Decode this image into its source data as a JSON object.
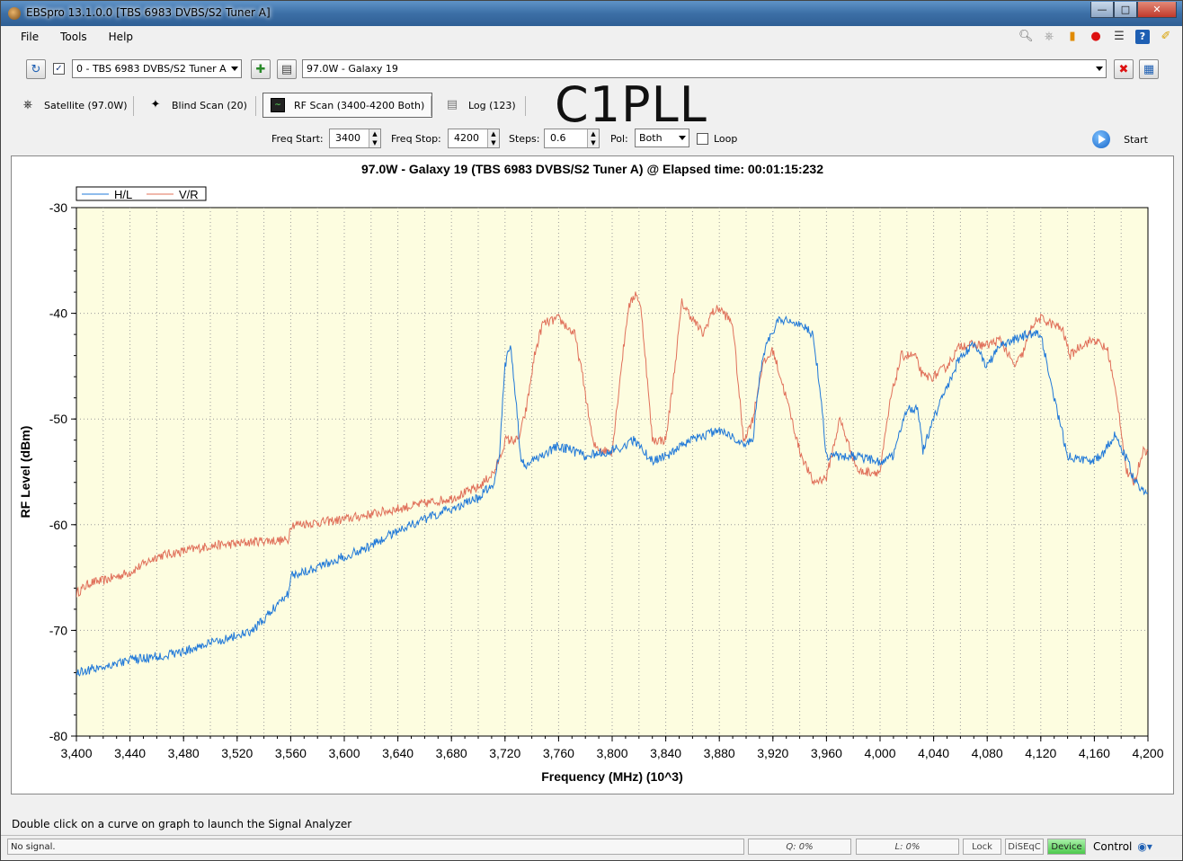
{
  "window": {
    "title": "EBSpro 13.1.0.0 [TBS 6983 DVBS/S2 Tuner A]"
  },
  "menu": {
    "file": "File",
    "tools": "Tools",
    "help": "Help"
  },
  "toolbar": {
    "tuner_select": "0 - TBS 6983 DVBS/S2 Tuner A",
    "satellite_select": "97.0W - Galaxy 19"
  },
  "tabs": {
    "satellite": "Satellite (97.0W)",
    "blind_scan": "Blind Scan (20)",
    "rf_scan": "RF Scan (3400-4200 Both)",
    "log": "Log (123)"
  },
  "watermark": "C1PLL",
  "params": {
    "freq_start_label": "Freq Start:",
    "freq_start": "3400",
    "freq_stop_label": "Freq Stop:",
    "freq_stop": "4200",
    "steps_label": "Steps:",
    "steps": "0.6",
    "pol_label": "Pol:",
    "pol": "Both",
    "loop_label": "Loop",
    "start_label": "Start"
  },
  "chart_data": {
    "type": "line",
    "title": "97.0W - Galaxy 19 (TBS 6983 DVBS/S2 Tuner A) @ Elapsed time: 00:01:15:232",
    "xlabel": "Frequency (MHz) (10^3)",
    "ylabel": "RF Level (dBm)",
    "xlim": [
      3400,
      4200
    ],
    "ylim": [
      -80,
      -30
    ],
    "xticks": [
      3400,
      3440,
      3480,
      3520,
      3560,
      3600,
      3640,
      3680,
      3720,
      3760,
      3800,
      3840,
      3880,
      3920,
      3960,
      4000,
      4040,
      4080,
      4120,
      4160,
      4200
    ],
    "xtick_labels": [
      "3,400",
      "3,440",
      "3,480",
      "3,520",
      "3,560",
      "3,600",
      "3,640",
      "3,680",
      "3,720",
      "3,760",
      "3,800",
      "3,840",
      "3,880",
      "3,920",
      "3,960",
      "4,000",
      "4,040",
      "4,080",
      "4,120",
      "4,160",
      "4,200"
    ],
    "yticks": [
      -30,
      -40,
      -50,
      -60,
      -70,
      -80
    ],
    "grid": true,
    "legend": "top-left",
    "colors": {
      "plot_bg": "#fdfde0",
      "H/L": "#1f78d8",
      "V/R": "#e0705a"
    },
    "series": [
      {
        "name": "H/L",
        "x": [
          3400,
          3420,
          3440,
          3460,
          3480,
          3500,
          3520,
          3530,
          3540,
          3550,
          3555,
          3558,
          3560,
          3580,
          3600,
          3620,
          3640,
          3660,
          3680,
          3700,
          3712,
          3716,
          3720,
          3724,
          3728,
          3732,
          3736,
          3740,
          3760,
          3780,
          3800,
          3810,
          3816,
          3820,
          3830,
          3840,
          3860,
          3880,
          3900,
          3905,
          3910,
          3915,
          3925,
          3940,
          3950,
          3955,
          3960,
          3980,
          4000,
          4010,
          4020,
          4028,
          4032,
          4040,
          4050,
          4060,
          4070,
          4080,
          4090,
          4100,
          4110,
          4120,
          4130,
          4140,
          4160,
          4168,
          4175,
          4185,
          4190,
          4200
        ],
        "y": [
          -74,
          -73.4,
          -72.8,
          -72.5,
          -72,
          -71.2,
          -70.5,
          -70.2,
          -69,
          -67.5,
          -66.8,
          -66.5,
          -64.8,
          -64,
          -63,
          -62,
          -60.5,
          -59.5,
          -58.5,
          -57.5,
          -56,
          -53,
          -45,
          -42.8,
          -48,
          -54,
          -54.5,
          -54,
          -52.5,
          -53.5,
          -53,
          -52.5,
          -52,
          -52.5,
          -54,
          -53.5,
          -52,
          -51,
          -52.5,
          -52,
          -46,
          -43,
          -40.5,
          -41,
          -42,
          -47,
          -53.5,
          -53.5,
          -54,
          -53.5,
          -49,
          -49,
          -53,
          -50,
          -47,
          -44,
          -43,
          -45,
          -43,
          -42.5,
          -42,
          -42,
          -48,
          -53.5,
          -54,
          -53,
          -51.5,
          -54,
          -56,
          -57
        ]
      },
      {
        "name": "V/R",
        "x": [
          3400,
          3410,
          3420,
          3440,
          3460,
          3480,
          3500,
          3520,
          3540,
          3558,
          3560,
          3580,
          3600,
          3620,
          3640,
          3660,
          3680,
          3700,
          3712,
          3718,
          3720,
          3730,
          3736,
          3742,
          3748,
          3760,
          3772,
          3778,
          3786,
          3794,
          3800,
          3806,
          3812,
          3818,
          3822,
          3830,
          3840,
          3846,
          3852,
          3860,
          3868,
          3874,
          3880,
          3890,
          3898,
          3905,
          3912,
          3920,
          3930,
          3940,
          3950,
          3960,
          3970,
          3978,
          3984,
          3990,
          4000,
          4008,
          4016,
          4026,
          4032,
          4040,
          4050,
          4060,
          4070,
          4080,
          4090,
          4100,
          4106,
          4114,
          4120,
          4128,
          4136,
          4142,
          4150,
          4160,
          4170,
          4178,
          4184,
          4190,
          4196,
          4200
        ],
        "y": [
          -66.5,
          -65.5,
          -65.3,
          -64.5,
          -63,
          -62.5,
          -62,
          -61.8,
          -61.5,
          -61.5,
          -60,
          -59.8,
          -59.5,
          -59,
          -58.5,
          -58,
          -57.5,
          -56.5,
          -55,
          -53,
          -52,
          -52,
          -49,
          -44,
          -41,
          -40.5,
          -42,
          -46,
          -52.5,
          -53,
          -53,
          -46,
          -39.5,
          -38,
          -40,
          -52,
          -52,
          -46,
          -39,
          -40.5,
          -42,
          -40,
          -39.5,
          -41,
          -52,
          -50,
          -45,
          -43.5,
          -48,
          -53,
          -56,
          -55.5,
          -50,
          -53,
          -55,
          -55,
          -55,
          -48,
          -44,
          -44,
          -46,
          -46,
          -45,
          -43,
          -43,
          -43,
          -42.5,
          -45,
          -44,
          -41,
          -40.5,
          -41,
          -41.5,
          -44,
          -43,
          -42.5,
          -43.5,
          -49,
          -55,
          -56,
          -53,
          -53
        ]
      }
    ]
  },
  "hint": "Double click on a curve on graph to launch the Signal Analyzer",
  "status": {
    "signal": "No signal.",
    "q": "Q: 0%",
    "l": "L: 0%",
    "lock": "Lock",
    "diseqc": "DiSEqC",
    "device": "Device",
    "control": "Control"
  }
}
